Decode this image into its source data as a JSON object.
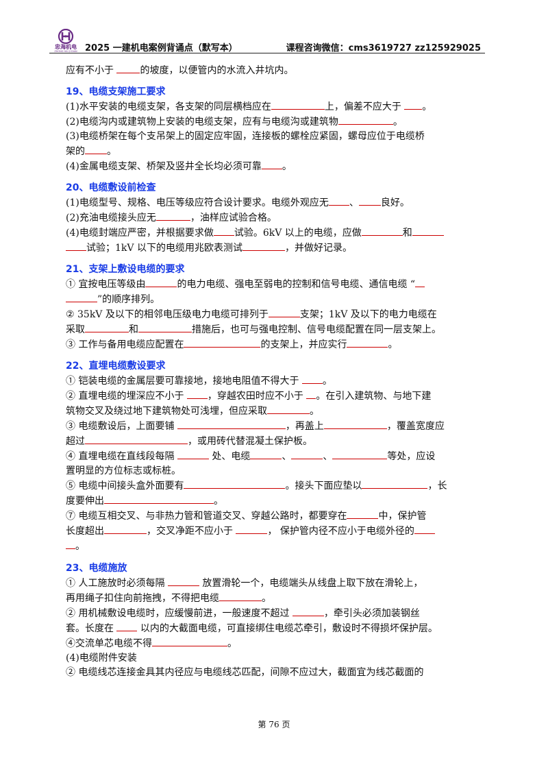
{
  "header": {
    "logo_text": "忠海机电",
    "logo_sub": "ZHONG HAI JI DIAN",
    "title": "2025 一建机电案例背诵点（默写本）",
    "contact": "课程咨询微信：cms3619727   zz125929025"
  },
  "colors": {
    "heading": "#1a3ce6",
    "blank_underline": "#cc0000",
    "logo": "#6a2c86"
  },
  "lines": {
    "l0": [
      "应有不小于 ",
      "的坡度，以便管内的水流入井坑内。"
    ],
    "h19": "19、电缆支架施工要求",
    "s19_1": [
      "(1)水平安装的电缆支架，各支架的同层横档应在",
      "上，偏差不应大于 ",
      "。"
    ],
    "s19_2": [
      "(2)电缆沟内或建筑物上安装的电缆支架，应有与电缆沟或建筑物",
      "。"
    ],
    "s19_3a": "(3)电缆桥架在每个支吊架上的固定应牢固，连接板的螺栓应紧固，螺母应位于电缆桥",
    "s19_3b": [
      "架的",
      "。"
    ],
    "s19_4": [
      "(4)金属电缆支架、桥架及竖井全长均必须可靠",
      "。"
    ],
    "h20": "20、电缆敷设前检查",
    "s20_1": [
      "(1)电缆型号、规格、电压等级应符合设计要求。电缆外观应无",
      "、",
      "良好。"
    ],
    "s20_2": [
      "(2)充油电缆接头应无",
      "，油样应试验合格。"
    ],
    "s20_4a": [
      "(4)电缆封端应严密，并根据要求做",
      "试验。6kV 以上的电缆，应做",
      "和"
    ],
    "s20_4b": [
      "试验；1kV 以下的电缆用兆欧表测试",
      "，并做好记录。"
    ],
    "h21": "21、支架上敷设电缆的要求",
    "s21_1a": [
      "① 宜按电压等级由",
      "的电力电缆、强电至弱电的控制和信号电缆、通信电缆 “"
    ],
    "s21_1b": [
      "”的顺序排列。"
    ],
    "s21_2a": [
      "② 35kV 及以下的相邻电压级电力电缆可排列于",
      "支架；1kV 及以下的电力电缆在"
    ],
    "s21_2b": [
      "采取",
      "和",
      "措施后，也可与强电控制、信号电缆配置在同一层支架上。"
    ],
    "s21_3": [
      "③ 工作与备用电缆应配置在",
      "的支架上，并应实行",
      "。"
    ],
    "h22": "22、直埋电缆敷设要求",
    "s22_1": [
      "① 铠装电缆的金属层要可靠接地，接地电阻值不得大于 ",
      "。"
    ],
    "s22_2a": [
      "② 直埋电缆的埋深应不小于 ",
      "，穿越农田时应不小于 ",
      "。在引入建筑物、与地下建"
    ],
    "s22_2b": [
      "筑物交叉及绕过地下建筑物处可浅埋，但应采取",
      "。"
    ],
    "s22_3a": [
      "③ 电缆敷设后，上面要铺 ",
      "，再盖上",
      "，覆盖宽度应"
    ],
    "s22_3b": [
      "超过",
      "，或用砖代替混凝土保护板。"
    ],
    "s22_4a": [
      "④ 直埋电缆在直线段每隔 ",
      " 处、电缆",
      "、",
      "、",
      "等处，应设"
    ],
    "s22_4b": "置明显的方位标志或标桩。",
    "s22_5a": [
      "⑤ 电缆中间接头盒外面要有",
      "。接头下面应垫以",
      "，长"
    ],
    "s22_5b": [
      "度要伸出",
      "。"
    ],
    "s22_7a": [
      "⑦ 电缆互相交叉、与非热力管和管道交叉、穿越公路时，都要穿在",
      "中，保护管"
    ],
    "s22_7b": [
      "长度超出",
      "，交叉净距不应小于 ",
      "，  保护管内径不应小于电缆外径的"
    ],
    "s22_7c": [
      "。"
    ],
    "h23": "23、电缆施放",
    "s23_1a": [
      "① 人工施放时必须每隔 ",
      " 放置滑轮一个，电缆端头从线盘上取下放在滑轮上，"
    ],
    "s23_1b": [
      "再用绳子扣住向前拖拽，不得把电缆",
      "。"
    ],
    "s23_2a": [
      "② 用机械敷设电缆时，应缓慢前进，一般速度不超过 ",
      "，牵引头必须加装钢丝"
    ],
    "s23_2b": [
      "套。长度在 ",
      " 以内的大截面电缆，可直接绑住电缆芯牵引，敷设时不得损坏保护层。"
    ],
    "s23_4": [
      "④交流单芯电缆不得",
      "。"
    ],
    "s23_5": "(4)电缆附件安装",
    "s23_6": "② 电缆线芯连接金具其内径应与电缆线芯匹配，间隙不应过大，截面宜为线芯截面的"
  },
  "footer": {
    "page": "第 76 页"
  }
}
